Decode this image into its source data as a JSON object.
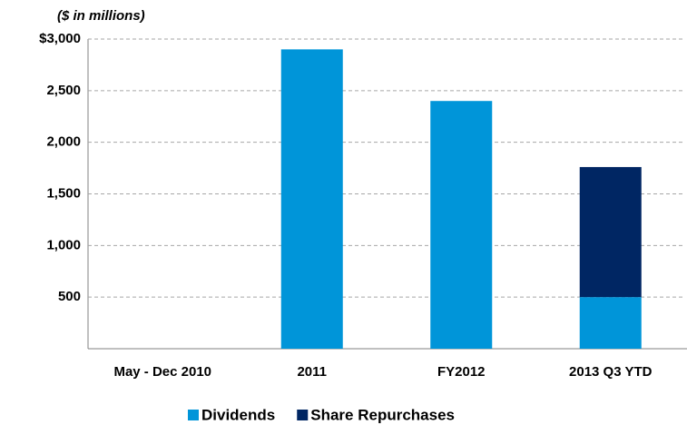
{
  "chart_data": {
    "type": "bar",
    "stacked": true,
    "unit_label": "($ in millions)",
    "categories": [
      "May - Dec 2010",
      "2011",
      "FY2012",
      "2013 Q3 YTD"
    ],
    "series": [
      {
        "name": "Dividends",
        "color": "#0095d9",
        "values": [
          0,
          2900,
          2400,
          500
        ]
      },
      {
        "name": "Share Repurchases",
        "color": "#002663",
        "values": [
          0,
          0,
          0,
          1260
        ]
      }
    ],
    "ylim": [
      0,
      3000
    ],
    "yticks": [
      {
        "value": 500,
        "label": "500"
      },
      {
        "value": 1000,
        "label": "1,000"
      },
      {
        "value": 1500,
        "label": "1,500"
      },
      {
        "value": 2000,
        "label": "2,000"
      },
      {
        "value": 2500,
        "label": "2,500"
      },
      {
        "value": 3000,
        "label": "$3,000"
      }
    ],
    "grid": true,
    "legend": "bottom"
  }
}
